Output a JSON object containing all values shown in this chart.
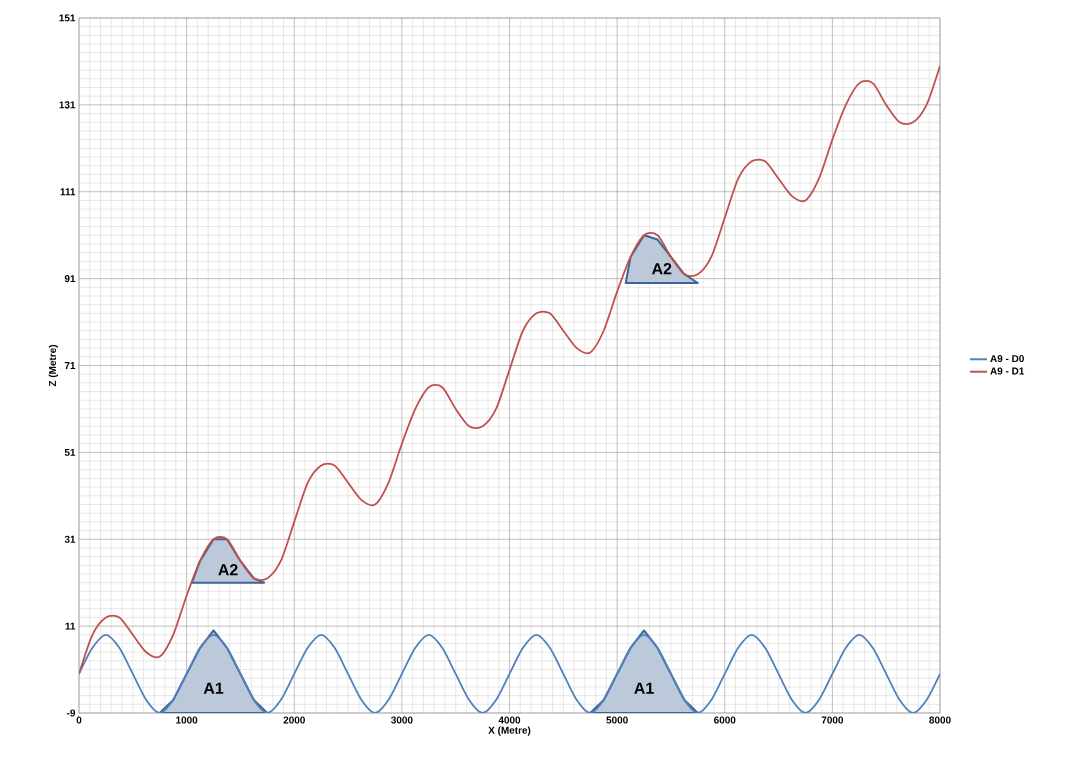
{
  "chart_data": {
    "type": "line",
    "xlabel": "X (Metre)",
    "ylabel": "Z (Metre)",
    "xlim": [
      0,
      8000
    ],
    "ylim": [
      -9,
      151
    ],
    "xticks": [
      0,
      1000,
      2000,
      3000,
      4000,
      5000,
      6000,
      7000,
      8000
    ],
    "yticks": [
      -9,
      11,
      31,
      51,
      71,
      91,
      111,
      131,
      151
    ],
    "grid": true,
    "legend": "right",
    "marker": "none",
    "line_style": "solid",
    "x": [
      0,
      125,
      250,
      375,
      500,
      625,
      750,
      875,
      1000,
      1125,
      1250,
      1375,
      1500,
      1625,
      1750,
      1875,
      2000,
      2125,
      2250,
      2375,
      2500,
      2625,
      2750,
      2875,
      3000,
      3125,
      3250,
      3375,
      3500,
      3625,
      3750,
      3875,
      4000,
      4125,
      4250,
      4375,
      4500,
      4625,
      4750,
      4875,
      5000,
      5125,
      5250,
      5375,
      5500,
      5625,
      5750,
      5875,
      6000,
      6125,
      6250,
      6375,
      6500,
      6625,
      6750,
      6875,
      7000,
      7125,
      7250,
      7375,
      7500,
      7625,
      7750,
      7875,
      8000
    ],
    "series": [
      {
        "type": "area",
        "color": "#3d6496",
        "x": [
          750,
          875,
          1000,
          1125,
          1250,
          1375,
          1500,
          1625,
          1750
        ],
        "values": [
          -9,
          -6,
          0,
          6,
          10,
          6,
          0,
          -6,
          -9
        ]
      },
      {
        "type": "area",
        "color": "#3d6496",
        "x": [
          4750,
          4875,
          5000,
          5125,
          5250,
          5375,
          5500,
          5625,
          5750
        ],
        "values": [
          -9,
          -6,
          0,
          6,
          10,
          6,
          0,
          -6,
          -9
        ]
      },
      {
        "type": "area",
        "color": "#3d6496",
        "x": [
          1050,
          1125,
          1250,
          1375,
          1500,
          1625,
          1720
        ],
        "values": [
          21,
          26,
          31,
          31,
          26,
          22,
          21
        ]
      },
      {
        "type": "area",
        "color": "#3d6496",
        "x": [
          5080,
          5125,
          5250,
          5375,
          5500,
          5625,
          5750
        ],
        "values": [
          90,
          96,
          101,
          100,
          96,
          92,
          90
        ]
      },
      {
        "name": "A9 - D0",
        "color": "#4f81bd",
        "values": [
          0,
          6,
          9,
          6,
          0,
          -6,
          -9,
          -6,
          0,
          6,
          9,
          6,
          0,
          -6,
          -9,
          -6,
          0,
          6,
          9,
          6,
          0,
          -6,
          -9,
          -6,
          0,
          6,
          9,
          6,
          0,
          -6,
          -9,
          -6,
          0,
          6,
          9,
          6,
          0,
          -6,
          -9,
          -6,
          0,
          6,
          9,
          6,
          0,
          -6,
          -9,
          -6,
          0,
          6,
          9,
          6,
          0,
          -6,
          -9,
          -6,
          0,
          6,
          9,
          6,
          0,
          -6,
          -9,
          -6,
          0
        ]
      },
      {
        "name": "A9 - D1",
        "color": "#c0504d",
        "values": [
          0,
          9,
          13,
          13,
          9,
          5,
          4,
          9,
          18,
          26,
          31,
          31,
          26,
          22,
          22,
          26,
          35,
          44,
          48,
          48,
          44,
          40,
          39,
          44,
          53,
          61,
          66,
          66,
          61,
          57,
          57,
          61,
          70,
          79,
          83,
          83,
          79,
          75,
          74,
          79,
          88,
          96,
          101,
          101,
          96,
          92,
          92,
          96,
          105,
          114,
          118,
          118,
          114,
          110,
          109,
          114,
          123,
          131,
          136,
          136,
          131,
          127,
          127,
          131,
          140
        ]
      }
    ],
    "annotations": [
      "A1",
      "A1",
      "A2",
      "A2"
    ]
  }
}
